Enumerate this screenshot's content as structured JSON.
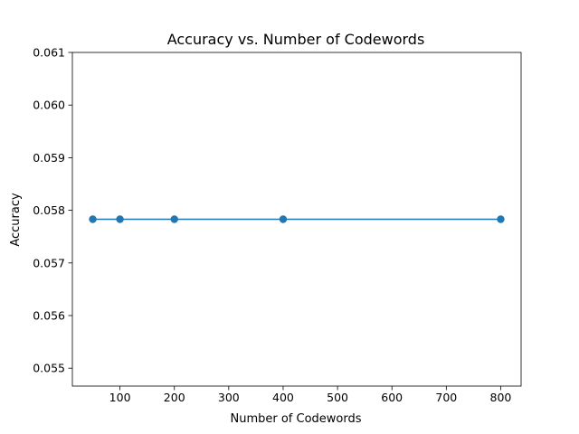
{
  "chart_data": {
    "type": "line",
    "title": "Accuracy vs. Number of Codewords",
    "xlabel": "Number of Codewords",
    "ylabel": "Accuracy",
    "x": [
      50,
      100,
      200,
      400,
      800
    ],
    "series": [
      {
        "values": [
          0.05783,
          0.05783,
          0.05783,
          0.05783,
          0.05783
        ]
      }
    ],
    "xlim": [
      12.5,
      837.5
    ],
    "ylim": [
      0.05466,
      0.061
    ],
    "xticks": [
      100,
      200,
      300,
      400,
      500,
      600,
      700,
      800
    ],
    "yticks": [
      0.055,
      0.056,
      0.057,
      0.058,
      0.059,
      0.06,
      0.061
    ],
    "ytick_labels": [
      "0.055",
      "0.056",
      "0.057",
      "0.058",
      "0.059",
      "0.060",
      "0.061"
    ],
    "markers": true,
    "grid": false,
    "line_color": "#1f77b4"
  }
}
